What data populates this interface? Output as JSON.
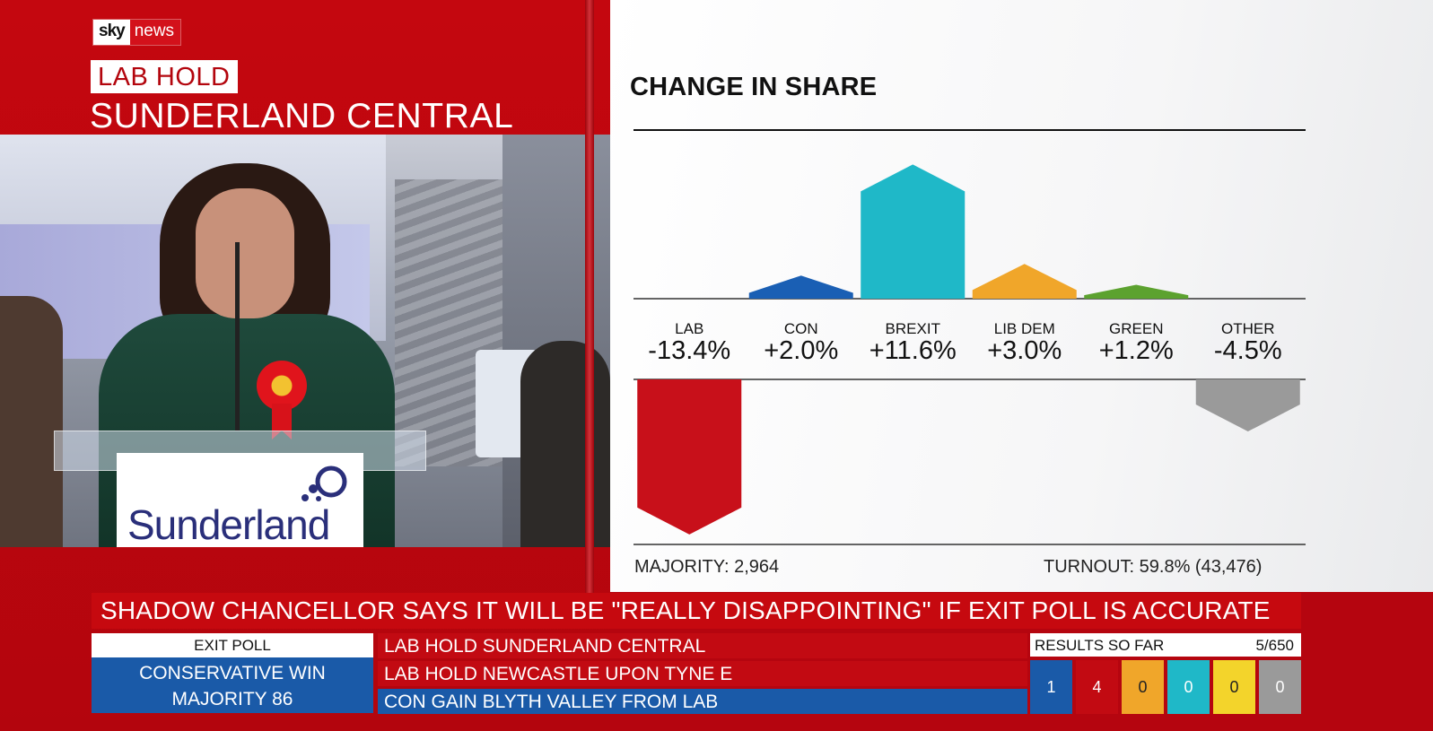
{
  "broadcaster": {
    "logo_word_1": "sky",
    "logo_word_2": "news"
  },
  "result": {
    "badge": "LAB HOLD",
    "constituency": "SUNDERLAND CENTRAL"
  },
  "scene": {
    "lectern_sign": "Sunderland"
  },
  "colors": {
    "lab": "#c8101a",
    "con": "#1a5fb4",
    "brexit": "#1fb8c8",
    "lib_dem": "#f0a62a",
    "green": "#5ca22f",
    "other": "#9a9a9a",
    "banner_red": "#c6090f",
    "banner_blue": "#1a5aa8"
  },
  "chart_data": {
    "type": "bar",
    "title": "CHANGE IN SHARE",
    "categories": [
      "LAB",
      "CON",
      "BREXIT",
      "LIB DEM",
      "GREEN",
      "OTHER"
    ],
    "values": [
      -13.4,
      2.0,
      11.6,
      3.0,
      1.2,
      -4.5
    ],
    "value_labels": [
      "-13.4%",
      "+2.0%",
      "+11.6%",
      "+3.0%",
      "+1.2%",
      "-4.5%"
    ],
    "colors": [
      "#c8101a",
      "#1a5fb4",
      "#1fb8c8",
      "#f0a62a",
      "#5ca22f",
      "#9a9a9a"
    ],
    "ylabel": "",
    "legend": "none",
    "grid": false
  },
  "footer": {
    "majority": "MAJORITY: 2,964",
    "turnout": "TURNOUT: 59.8% (43,476)"
  },
  "headline": "SHADOW CHANCELLOR SAYS IT WILL BE \"REALLY DISAPPOINTING\" IF EXIT POLL IS ACCURATE",
  "exit_poll": {
    "label": "EXIT POLL",
    "line1": "CONSERVATIVE WIN",
    "line2": "MAJORITY 86"
  },
  "results_list": [
    {
      "text": "LAB HOLD SUNDERLAND CENTRAL",
      "party": "lab"
    },
    {
      "text": "LAB HOLD NEWCASTLE UPON TYNE E",
      "party": "lab"
    },
    {
      "text": "CON GAIN BLYTH VALLEY FROM LAB",
      "party": "con"
    }
  ],
  "results_so_far": {
    "label": "RESULTS SO FAR",
    "count": "5/650",
    "tiles": [
      {
        "party": "con",
        "value": "1",
        "color": "#1a5aa8"
      },
      {
        "party": "lab",
        "value": "4",
        "color": "#c20a12"
      },
      {
        "party": "lib_dem",
        "value": "0",
        "color": "#f0a62a"
      },
      {
        "party": "brexit",
        "value": "0",
        "color": "#1fb8c8"
      },
      {
        "party": "other_yellow",
        "value": "0",
        "color": "#f3d42b"
      },
      {
        "party": "other",
        "value": "0",
        "color": "#9a9a9a"
      }
    ]
  }
}
